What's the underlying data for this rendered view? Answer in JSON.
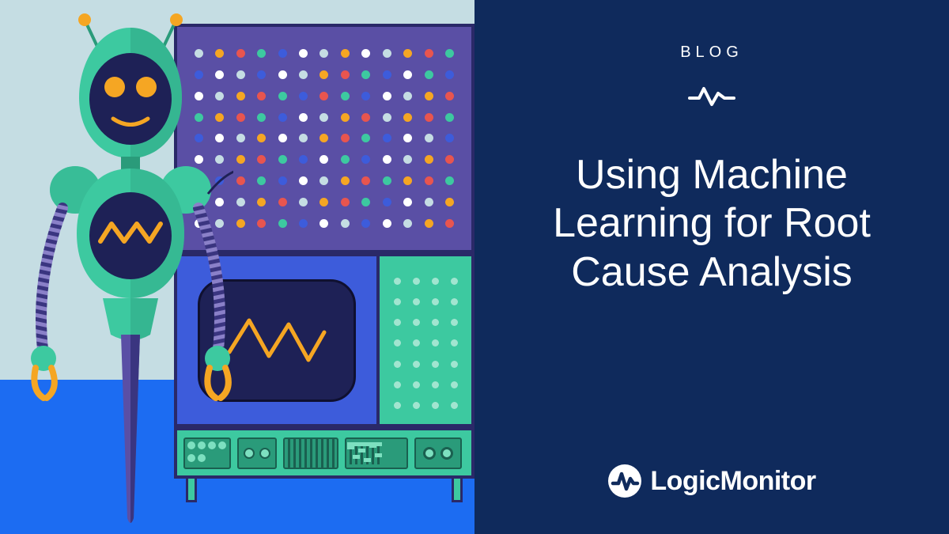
{
  "right": {
    "background_color": "#0f2a5c",
    "category_label": "BLOG",
    "headline": "Using Machine Learning for Root Cause Analysis",
    "brand_name": "LogicMonitor",
    "text_color": "#ffffff",
    "accent_color": "#ffffff"
  },
  "left": {
    "sky_color": "#c5dde3",
    "floor_color": "#1c6cf2"
  },
  "robot": {
    "body_color": "#3dc9a0",
    "body_dark": "#2a9b7a",
    "face_bg": "#1e2156",
    "eye_color": "#f5a623",
    "accent_color": "#f5a623",
    "arm_stripe_dark": "#3a3580",
    "arm_stripe_light": "#8a80c8"
  },
  "console": {
    "dot_panel_bg": "#5a4fa5",
    "screen_panel_bg": "#3d5cdb",
    "screen_bg": "#1e2156",
    "small_panel_bg": "#3dc9a0",
    "control_bg": "#3dc9a0",
    "border_color": "#2a2968",
    "wave_color": "#f5a623",
    "dot_colors": [
      "#c5dde3",
      "#f5a623",
      "#e8554f",
      "#3dc9a0",
      "#3d5cdb",
      "#ffffff"
    ]
  }
}
